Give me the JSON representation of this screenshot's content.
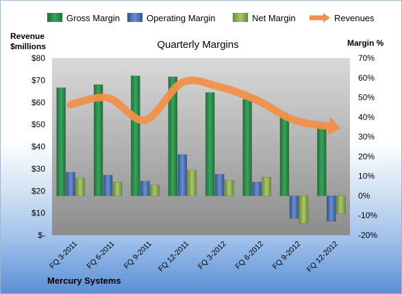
{
  "chart_data": {
    "type": "bar",
    "title": "Quarterly Margins",
    "categories": [
      "FQ 3-2011",
      "FQ 6-2011",
      "FQ 9-2011",
      "FQ 12-2011",
      "FQ 3-2012",
      "FQ 6-2012",
      "FQ 9-2012",
      "FQ 12-2012"
    ],
    "series": [
      {
        "name": "Gross Margin",
        "type": "bar",
        "axis": "right",
        "color": "#2a8a4a",
        "values": [
          55,
          56.5,
          61,
          60.5,
          52.5,
          49,
          41,
          35
        ]
      },
      {
        "name": "Operating Margin",
        "type": "bar",
        "axis": "right",
        "color": "#4a6fb0",
        "values": [
          12,
          10.5,
          7.5,
          21,
          11,
          7,
          -11.5,
          -13
        ]
      },
      {
        "name": "Net Margin",
        "type": "bar",
        "axis": "right",
        "color": "#8fb14a",
        "values": [
          9,
          7,
          5.5,
          13,
          8,
          9.5,
          -14,
          -9
        ]
      },
      {
        "name": "Revenues",
        "type": "line",
        "axis": "left",
        "color": "#f0904a",
        "values": [
          59,
          62,
          52,
          69,
          67,
          61,
          52,
          49
        ]
      }
    ],
    "y_left": {
      "label": "Revenue\n$millions",
      "range": [
        0,
        80
      ],
      "ticks": [
        "$-",
        "$10",
        "$20",
        "$30",
        "$40",
        "$50",
        "$60",
        "$70",
        "$80"
      ]
    },
    "y_right": {
      "label": "Margin %",
      "range": [
        -20,
        70
      ],
      "ticks": [
        "-20%",
        "-10%",
        "0%",
        "10%",
        "20%",
        "30%",
        "40%",
        "50%",
        "60%",
        "70%"
      ]
    },
    "legend_position": "top",
    "grid": false,
    "footer": "Mercury Systems"
  }
}
